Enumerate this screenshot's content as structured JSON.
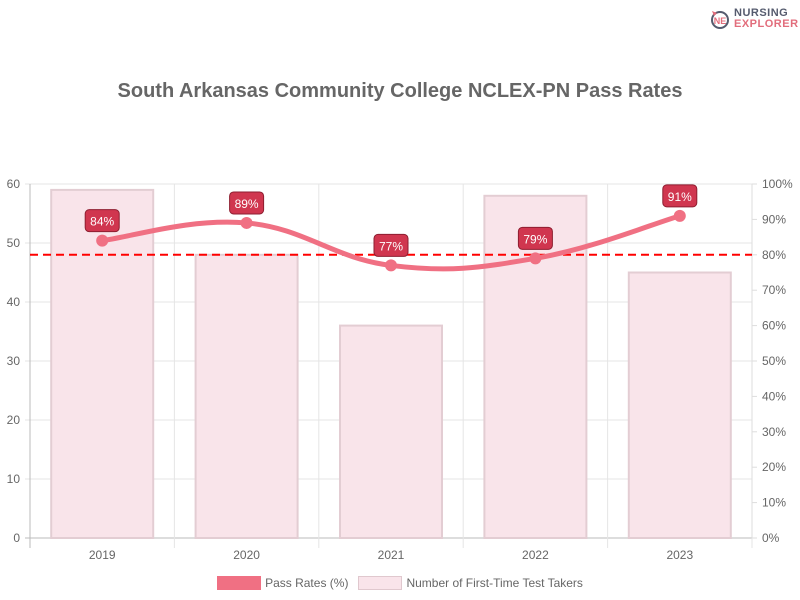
{
  "logo": {
    "line1": "NURSING",
    "line2": "EXPLORER"
  },
  "chart_data": {
    "type": "bar+line",
    "title": "South Arkansas Community College NCLEX-PN Pass Rates",
    "categories": [
      "2019",
      "2020",
      "2021",
      "2022",
      "2023"
    ],
    "series": [
      {
        "name": "Pass Rates (%)",
        "type": "line",
        "axis": "right",
        "values": [
          84,
          89,
          77,
          79,
          91
        ],
        "labels": [
          "84%",
          "89%",
          "77%",
          "79%",
          "91%"
        ],
        "color": "#f07083"
      },
      {
        "name": "Number of First-Time Test Takers",
        "type": "bar",
        "axis": "left",
        "values": [
          59,
          48,
          36,
          58,
          45
        ],
        "color": "#f9e4ea"
      }
    ],
    "threshold": {
      "value": 80,
      "axis": "right",
      "color": "#ff0000",
      "style": "dashed"
    },
    "left_axis": {
      "ylim": [
        0,
        60
      ],
      "ticks": [
        "0",
        "10",
        "20",
        "30",
        "40",
        "50",
        "60"
      ]
    },
    "right_axis": {
      "ylim": [
        0,
        100
      ],
      "ticks": [
        "0%",
        "10%",
        "20%",
        "30%",
        "40%",
        "50%",
        "60%",
        "70%",
        "80%",
        "90%",
        "100%"
      ]
    },
    "grid": true,
    "legend_position": "bottom"
  }
}
